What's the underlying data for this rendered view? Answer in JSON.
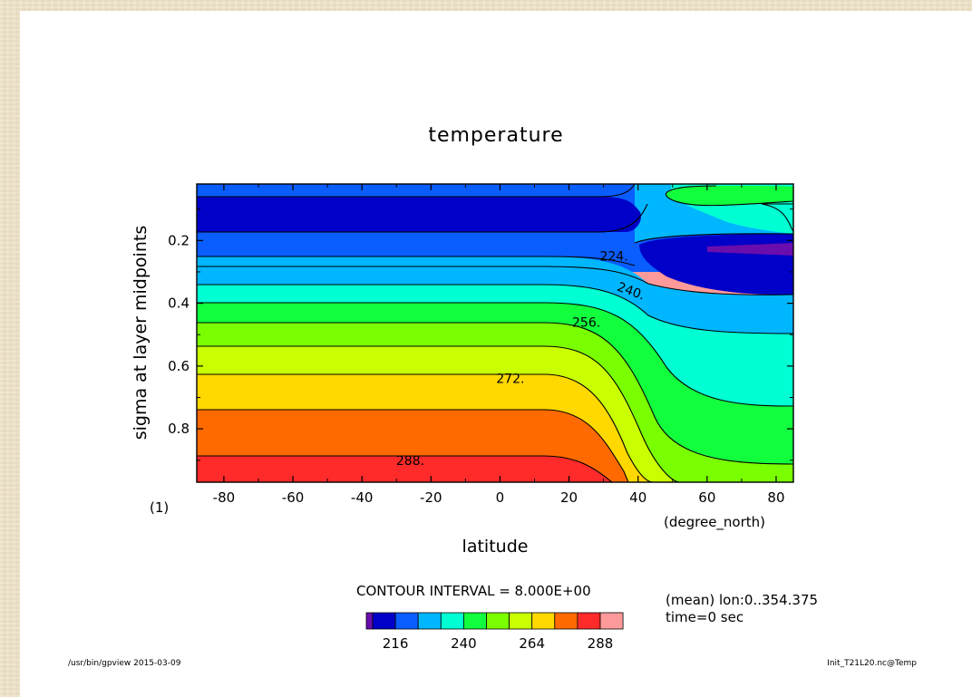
{
  "chart_data": {
    "type": "contour",
    "title": "temperature",
    "xlabel": "latitude",
    "xunit": "(degree_north)",
    "ylabel": "sigma at layer midpoints",
    "xlim": [
      -87.86,
      85.0
    ],
    "ylim": [
      0.02,
      0.97
    ],
    "y_inverted": true,
    "xticks": [
      "-80",
      "-60",
      "-40",
      "-20",
      "0",
      "20",
      "40",
      "60",
      "80"
    ],
    "yticks": [
      "0.2",
      "0.4",
      "0.6",
      "0.8"
    ],
    "contour_interval": 8.0,
    "band_edges": [
      208,
      216,
      224,
      232,
      240,
      248,
      256,
      264,
      272,
      280,
      288
    ],
    "band_colors": [
      "#6a0dad",
      "#0000c8",
      "#0a5dff",
      "#00b7ff",
      "#00ffd2",
      "#12ff3e",
      "#7aff00",
      "#c9ff00",
      "#ffd800",
      "#ff6a00",
      "#ff2a2a",
      "#ff9a9a"
    ],
    "contour_labels": [
      {
        "value": "224.",
        "x": 33,
        "y": 0.25
      },
      {
        "value": "240.",
        "x": 38,
        "y": 0.36
      },
      {
        "value": "256.",
        "x": 25,
        "y": 0.46
      },
      {
        "value": "272.",
        "x": 3,
        "y": 0.64
      },
      {
        "value": "288.",
        "x": -26,
        "y": 0.9
      }
    ],
    "colorbar_ticks": [
      "216",
      "240",
      "264",
      "288"
    ],
    "frame_number": "(1)"
  },
  "annotations": {
    "contour_interval_text": "CONTOUR INTERVAL = 8.000E+00",
    "mean_text": "(mean) lon:0..354.375",
    "time_text": "time=0 sec",
    "program_text": "/usr/bin/gpview  2015-03-09",
    "file_text": "Init_T21L20.nc@Temp"
  }
}
